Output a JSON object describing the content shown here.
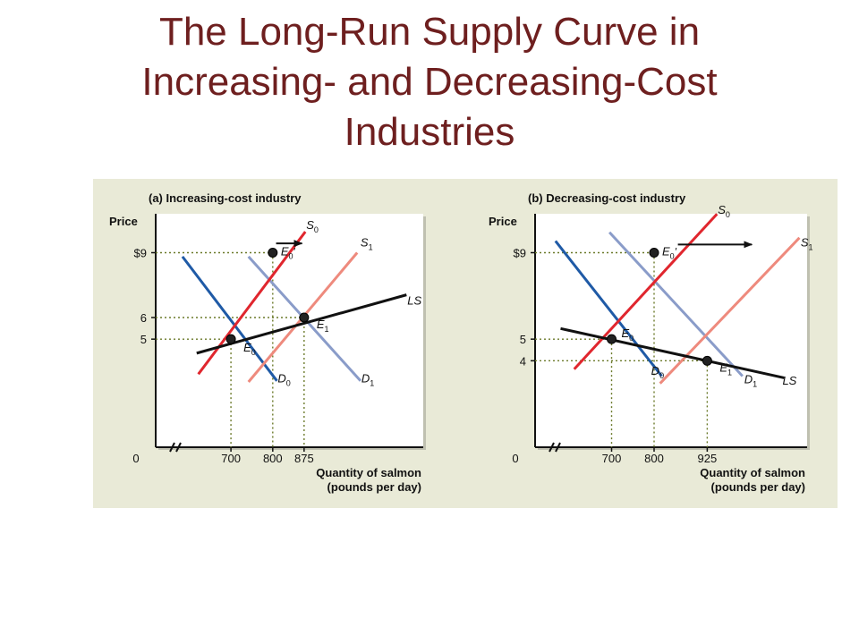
{
  "slide": {
    "title_lines": [
      "The Long-Run Supply Curve in",
      "Increasing- and Decreasing-Cost",
      "Industries"
    ]
  },
  "colors": {
    "title": "#6e1f1f",
    "panel_bg": "#e9ead7",
    "plot_bg": "#ffffff",
    "D0": "#1f5aa6",
    "D1": "#8a9cc9",
    "S0": "#e0262e",
    "S1": "#ee8a7d",
    "LS": "#111111",
    "guide": "#6b7a2a"
  },
  "chart_data": [
    {
      "type": "line",
      "title": "(a) Increasing-cost industry",
      "ylabel": "Price",
      "xlabel_lines": [
        "Quantity of salmon",
        "(pounds per day)"
      ],
      "x_ticks": [
        {
          "value": 0,
          "label": "0"
        },
        {
          "value": 700,
          "label": "700"
        },
        {
          "value": 800,
          "label": "800"
        },
        {
          "value": 875,
          "label": "875"
        }
      ],
      "y_ticks": [
        {
          "value": 9,
          "label": "$9"
        },
        {
          "value": 6,
          "label": "6"
        },
        {
          "value": 5,
          "label": "5"
        }
      ],
      "axis_break": true,
      "series": [
        {
          "name": "D",
          "sub": "0",
          "key": "D0",
          "points": [
            [
              584,
              8.82
            ],
            [
              810,
              3.07
            ]
          ],
          "label_at": [
            812,
            3.0
          ]
        },
        {
          "name": "D",
          "sub": "1",
          "key": "D1",
          "points": [
            [
              742,
              8.82
            ],
            [
              1010,
              3.07
            ]
          ],
          "label_at": [
            1012,
            3.0
          ]
        },
        {
          "name": "S",
          "sub": "0",
          "key": "S0",
          "points": [
            [
              622,
              3.38
            ],
            [
              878,
              9.97
            ]
          ],
          "label_at": [
            880,
            10.1
          ]
        },
        {
          "name": "S",
          "sub": "1",
          "key": "S1",
          "points": [
            [
              742,
              3.02
            ],
            [
              1002,
              9.0
            ]
          ],
          "label_at": [
            1010,
            9.3
          ]
        },
        {
          "name": "LS",
          "sub": "",
          "key": "LS",
          "points": [
            [
              618,
              4.35
            ],
            [
              1120,
              7.05
            ]
          ],
          "label_at": [
            1122,
            6.6
          ]
        }
      ],
      "equilibria": [
        {
          "label": "E",
          "sub": "0",
          "prime": false,
          "x": 700,
          "y": 5
        },
        {
          "label": "E",
          "sub": "0",
          "prime": true,
          "x": 800,
          "y": 9
        },
        {
          "label": "E",
          "sub": "1",
          "prime": false,
          "x": 875,
          "y": 6
        }
      ],
      "shift_arrow": {
        "from": [
          808,
          9.43
        ],
        "to": [
          870,
          9.43
        ]
      },
      "xlim": [
        520,
        1160
      ],
      "ylim": [
        0,
        10.8
      ]
    },
    {
      "type": "line",
      "title": "(b) Decreasing-cost industry",
      "ylabel": "Price",
      "xlabel_lines": [
        "Quantity of salmon",
        "(pounds per day)"
      ],
      "x_ticks": [
        {
          "value": 0,
          "label": "0"
        },
        {
          "value": 700,
          "label": "700"
        },
        {
          "value": 800,
          "label": "800"
        },
        {
          "value": 925,
          "label": "925"
        }
      ],
      "y_ticks": [
        {
          "value": 9,
          "label": "$9"
        },
        {
          "value": 5,
          "label": "5"
        },
        {
          "value": 4,
          "label": "4"
        }
      ],
      "axis_break": true,
      "series": [
        {
          "name": "D",
          "sub": "0",
          "key": "D0",
          "points": [
            [
              568,
              9.54
            ],
            [
              818,
              3.29
            ]
          ],
          "label_at": [
            793,
            3.35
          ]
        },
        {
          "name": "D",
          "sub": "1",
          "key": "D1",
          "points": [
            [
              695,
              9.94
            ],
            [
              1008,
              3.29
            ]
          ],
          "label_at": [
            1012,
            2.95
          ]
        },
        {
          "name": "S",
          "sub": "0",
          "key": "S0",
          "points": [
            [
              612,
              3.61
            ],
            [
              948,
              10.79
            ]
          ],
          "label_at": [
            950,
            10.8
          ]
        },
        {
          "name": "S",
          "sub": "1",
          "key": "S1",
          "points": [
            [
              814,
              2.95
            ],
            [
              1142,
              9.69
            ]
          ],
          "label_at": [
            1145,
            9.3
          ]
        },
        {
          "name": "LS",
          "sub": "",
          "key": "LS",
          "points": [
            [
              580,
              5.49
            ],
            [
              1106,
              3.21
            ]
          ],
          "label_at": [
            1102,
            2.9
          ]
        }
      ],
      "equilibria": [
        {
          "label": "E",
          "sub": "0",
          "prime": false,
          "x": 700,
          "y": 5
        },
        {
          "label": "E",
          "sub": "0",
          "prime": true,
          "x": 800,
          "y": 9
        },
        {
          "label": "E",
          "sub": "1",
          "prime": false,
          "x": 925,
          "y": 4
        }
      ],
      "shift_arrow": {
        "from": [
          856,
          9.38
        ],
        "to": [
          1030,
          9.38
        ]
      },
      "xlim": [
        520,
        1160
      ],
      "ylim": [
        0,
        10.8
      ]
    }
  ]
}
